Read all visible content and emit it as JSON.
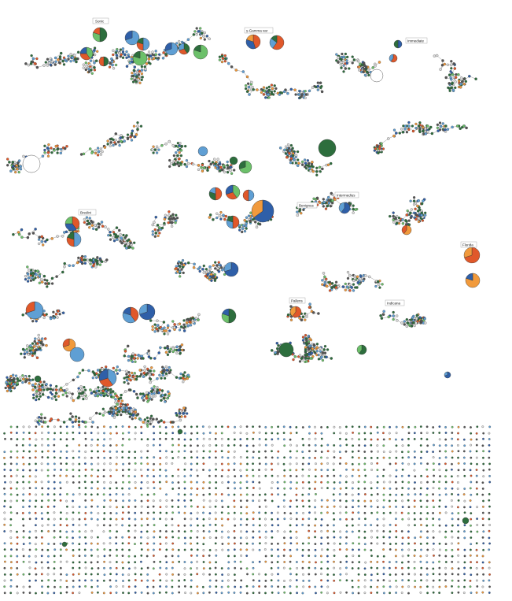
{
  "figure": {
    "labels": [
      "Sonic",
      "γ-Gamma var",
      "Immediate",
      "Bredini",
      "Benignus",
      "Intermedius",
      "Florida",
      "Pallens",
      "Indicana"
    ]
  },
  "colors": {
    "light_blue": "#5f9fd4",
    "dark_blue": "#2f5fa8",
    "orange_red": "#e0582a",
    "orange": "#f19a3c",
    "light_green": "#6cc06a",
    "dark_green": "#2d6e3d",
    "light_gray": "#dcdcdc",
    "dark_gray": "#555555",
    "edge": "#9a9a9a"
  }
}
